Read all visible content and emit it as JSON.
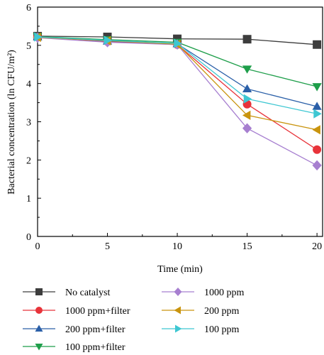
{
  "chart_data": {
    "type": "line",
    "xlabel": "Time (min)",
    "ylabel": "Bacterial concentration (ln CFU/m²)",
    "xlim": [
      0,
      20.4
    ],
    "ylim": [
      0,
      6
    ],
    "x_ticks": [
      0,
      5,
      10,
      15,
      20
    ],
    "y_ticks": [
      0,
      1,
      2,
      3,
      4,
      5,
      6
    ],
    "x": [
      0,
      5,
      10,
      15,
      20
    ],
    "grid": false,
    "legend_position": "below",
    "series": [
      {
        "name": "No catalyst",
        "color": "#3d3d3d",
        "marker": "square",
        "values": [
          5.24,
          5.22,
          5.17,
          5.16,
          5.02
        ]
      },
      {
        "name": "1000 ppm+filter",
        "color": "#e8333a",
        "marker": "circle",
        "values": [
          5.22,
          5.1,
          5.02,
          3.46,
          2.27
        ]
      },
      {
        "name": "200 ppm+filter",
        "color": "#2a5fa8",
        "marker": "triangle-up",
        "values": [
          5.22,
          5.11,
          5.04,
          3.86,
          3.4
        ]
      },
      {
        "name": "100 ppm+filter",
        "color": "#1e9e4a",
        "marker": "triangle-down",
        "values": [
          5.23,
          5.15,
          5.08,
          4.38,
          3.92
        ]
      },
      {
        "name": "1000 ppm",
        "color": "#a77fd0",
        "marker": "diamond",
        "values": [
          5.2,
          5.08,
          5.02,
          2.83,
          1.86
        ]
      },
      {
        "name": "200 ppm",
        "color": "#c9940e",
        "marker": "triangle-left",
        "values": [
          5.21,
          5.12,
          5.03,
          3.17,
          2.79
        ]
      },
      {
        "name": "100 ppm",
        "color": "#3ec7d2",
        "marker": "triangle-right",
        "values": [
          5.22,
          5.13,
          5.05,
          3.6,
          3.21
        ]
      }
    ]
  }
}
